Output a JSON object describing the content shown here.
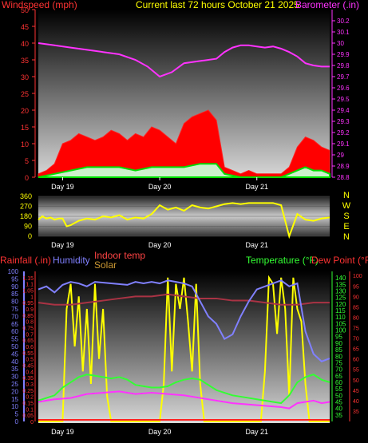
{
  "page": {
    "title": "Current last 72 hours October 21 2025",
    "title_color": "#ffff00"
  },
  "chart_data": [
    {
      "id": "wind_baro",
      "type": "line",
      "title": "Current last 72 hours October 21 2025",
      "ylabel_left": "Windspeed (mph)",
      "ylabel_right": "Barometer (.in)",
      "colors": {
        "left_label": "#ff3333",
        "right_label": "#ff33ff",
        "wind": "#ff0000",
        "gust": "#ff0000",
        "avg": "#00cc00",
        "low": "#d8f0d8",
        "baro": "#ff33ff"
      },
      "x_ticks": [
        "Day 19",
        "Day 20",
        "Day 21"
      ],
      "x_tick_hours": [
        6,
        30,
        54
      ],
      "x_range_hours": [
        0,
        72
      ],
      "ylim_left": [
        0,
        50
      ],
      "yticks_left": [
        0,
        5,
        10,
        15,
        20,
        25,
        30,
        35,
        40,
        45,
        50
      ],
      "ylim_right": [
        28.8,
        30.3
      ],
      "yticks_right": [
        "28.8",
        "28.9",
        "29",
        "29.1",
        "29.2",
        "29.3",
        "29.4",
        "29.5",
        "29.6",
        "29.7",
        "29.8",
        "29.9",
        "30",
        "30.1",
        "30.2"
      ],
      "series": [
        {
          "key": "wind_gust",
          "x": [
            0,
            2,
            4,
            6,
            8,
            10,
            12,
            14,
            16,
            18,
            20,
            22,
            24,
            26,
            28,
            30,
            32,
            34,
            36,
            38,
            40,
            42,
            44,
            46,
            48,
            50,
            52,
            54,
            56,
            58,
            60,
            62,
            64,
            66,
            68,
            70,
            72
          ],
          "y": [
            1,
            2,
            4,
            10,
            11,
            13,
            12,
            11,
            12,
            14,
            13,
            11,
            13,
            12,
            15,
            14,
            12,
            10,
            16,
            18,
            19,
            20,
            17,
            3,
            2,
            1,
            2,
            1,
            1,
            1,
            1,
            3,
            9,
            12,
            11,
            9,
            8
          ]
        },
        {
          "key": "wind_avg",
          "x": [
            0,
            4,
            8,
            12,
            16,
            20,
            24,
            28,
            32,
            36,
            40,
            44,
            46,
            50,
            56,
            60,
            62,
            64,
            66,
            68,
            70,
            72
          ],
          "y": [
            0,
            1,
            2,
            3,
            3,
            3,
            2,
            3,
            3,
            3,
            4,
            4,
            1,
            0,
            0,
            0,
            1,
            2,
            3,
            2,
            2,
            1
          ]
        },
        {
          "key": "barometer",
          "x": [
            0,
            4,
            8,
            12,
            16,
            20,
            24,
            27,
            30,
            33,
            36,
            40,
            44,
            46,
            48,
            50,
            52,
            54,
            56,
            58,
            60,
            62,
            64,
            66,
            68,
            70,
            72
          ],
          "y": [
            30.0,
            29.98,
            29.96,
            29.94,
            29.92,
            29.9,
            29.85,
            29.79,
            29.7,
            29.74,
            29.82,
            29.84,
            29.86,
            29.92,
            29.96,
            29.98,
            29.98,
            29.97,
            29.96,
            29.97,
            29.95,
            29.92,
            29.88,
            29.82,
            29.8,
            29.79,
            29.79
          ]
        }
      ]
    },
    {
      "id": "wind_dir",
      "type": "line",
      "ylim": [
        0,
        360
      ],
      "yticks": [
        0,
        90,
        180,
        270,
        360
      ],
      "right_labels": [
        "N",
        "W",
        "S",
        "E",
        "N"
      ],
      "x_ticks": [
        "Day 19",
        "Day 20",
        "Day 21"
      ],
      "x_tick_hours": [
        6,
        30,
        54
      ],
      "x_range_hours": [
        0,
        72
      ],
      "color": "#ffff00",
      "series": [
        {
          "key": "direction",
          "x": [
            0,
            1,
            2,
            3,
            4,
            5,
            6,
            7,
            8,
            10,
            12,
            14,
            16,
            18,
            20,
            22,
            24,
            26,
            28,
            30,
            32,
            34,
            36,
            38,
            40,
            42,
            44,
            46,
            48,
            50,
            52,
            54,
            56,
            58,
            60,
            62,
            64,
            66,
            68,
            70,
            72
          ],
          "y": [
            150,
            180,
            160,
            170,
            150,
            160,
            160,
            90,
            100,
            140,
            160,
            150,
            180,
            170,
            190,
            150,
            170,
            160,
            200,
            280,
            240,
            260,
            230,
            280,
            260,
            250,
            270,
            290,
            300,
            290,
            300,
            300,
            300,
            300,
            280,
            0,
            200,
            150,
            140,
            160,
            170
          ]
        }
      ]
    },
    {
      "id": "temp_panel",
      "type": "line",
      "legend": {
        "rainfall": "Rainfall (.in)",
        "humidity": "Humidity",
        "indoor": "Indoor temp",
        "solar": "Solar",
        "temperature": "Temperature (°F)",
        "dewpoint": "Dew Point (°F)"
      },
      "colors": {
        "rainfall": "#ff3333",
        "humidity": "#8080ff",
        "indoor": "#ff4444",
        "solar": "#cc9933",
        "temperature": "#33ff33",
        "dewpoint": "#ff3333",
        "solar_line": "#ffff00",
        "dew_line": "#ff33ff",
        "inside_line": "#aa3344"
      },
      "x_ticks": [
        "Day 19",
        "Day 20",
        "Day 21"
      ],
      "x_tick_hours": [
        6,
        30,
        54
      ],
      "x_range_hours": [
        0,
        72
      ],
      "ylim_rain": [
        0,
        1.2
      ],
      "yticks_rain": [
        "0",
        "0.05",
        "0.1",
        "0.15",
        "0.2",
        "0.25",
        "0.3",
        "0.35",
        "0.4",
        "0.45",
        "0.5",
        "0.55",
        "0.6",
        "0.65",
        "0.7",
        "0.75",
        "0.8",
        "0.85",
        "0.9",
        "0.95",
        "1",
        "1.05",
        "1.1",
        "1.15"
      ],
      "ylim_hum": [
        0,
        100
      ],
      "yticks_hum": [
        0,
        5,
        10,
        15,
        20,
        25,
        30,
        35,
        40,
        45,
        50,
        55,
        60,
        65,
        70,
        75,
        80,
        85,
        90,
        95,
        100
      ],
      "ylim_temp": [
        30,
        145
      ],
      "yticks_temp": [
        35,
        40,
        45,
        50,
        55,
        60,
        65,
        70,
        75,
        80,
        85,
        90,
        95,
        100,
        105,
        110,
        115,
        120,
        125,
        130,
        135,
        140
      ],
      "ylim_dew": [
        30,
        102
      ],
      "yticks_dew": [
        35,
        40,
        45,
        50,
        55,
        60,
        65,
        70,
        75,
        80,
        85,
        90,
        95,
        100
      ],
      "series": [
        {
          "key": "humidity",
          "x": [
            0,
            2,
            4,
            6,
            8,
            10,
            12,
            14,
            18,
            22,
            24,
            26,
            28,
            30,
            32,
            34,
            36,
            38,
            40,
            42,
            44,
            46,
            48,
            50,
            52,
            54,
            56,
            58,
            60,
            62,
            64,
            66,
            68,
            70,
            72
          ],
          "y": [
            88,
            90,
            86,
            91,
            93,
            92,
            90,
            93,
            92,
            91,
            93,
            92,
            93,
            92,
            94,
            93,
            92,
            90,
            80,
            70,
            65,
            55,
            58,
            70,
            80,
            88,
            90,
            92,
            94,
            90,
            92,
            60,
            45,
            40,
            42
          ]
        },
        {
          "key": "temperature",
          "x": [
            0,
            2,
            4,
            6,
            8,
            10,
            12,
            14,
            16,
            18,
            20,
            22,
            24,
            26,
            28,
            30,
            32,
            34,
            36,
            38,
            40,
            42,
            44,
            46,
            48,
            50,
            52,
            54,
            56,
            58,
            60,
            62,
            64,
            66,
            68,
            70,
            72
          ],
          "y": [
            46,
            48,
            50,
            56,
            60,
            64,
            66,
            65,
            64,
            63,
            64,
            62,
            58,
            57,
            56,
            56,
            57,
            60,
            62,
            63,
            62,
            58,
            54,
            52,
            50,
            49,
            48,
            47,
            46,
            45,
            44,
            50,
            60,
            64,
            66,
            62,
            60
          ]
        },
        {
          "key": "dewpoint",
          "x": [
            0,
            4,
            8,
            12,
            16,
            20,
            24,
            28,
            32,
            36,
            40,
            44,
            48,
            52,
            56,
            60,
            62,
            64,
            66,
            68,
            70,
            72
          ],
          "y": [
            45,
            47,
            48,
            51,
            52,
            53,
            51,
            52,
            51,
            50,
            48,
            46,
            44,
            43,
            42,
            41,
            40,
            44,
            45,
            46,
            44,
            45
          ]
        },
        {
          "key": "indoor_temp",
          "x": [
            0,
            4,
            8,
            12,
            16,
            20,
            24,
            28,
            32,
            36,
            40,
            44,
            48,
            52,
            56,
            60,
            64,
            68,
            72
          ],
          "y": [
            87,
            86,
            86,
            87,
            88,
            89,
            90,
            90,
            91,
            90,
            89,
            89,
            88,
            88,
            87,
            86,
            86,
            87,
            87
          ]
        },
        {
          "key": "solar",
          "x": [
            0,
            6,
            7,
            8,
            9,
            10,
            11,
            12,
            13,
            14,
            15,
            16,
            17,
            18,
            19,
            30,
            31,
            32,
            33,
            34,
            35,
            36,
            37,
            38,
            39,
            40,
            41,
            42,
            43,
            54,
            55,
            56,
            57,
            58,
            59,
            60,
            61,
            62,
            63,
            64,
            65,
            66,
            67,
            72
          ],
          "y": [
            0,
            0,
            0.9,
            1.1,
            0.6,
            1.0,
            0.4,
            0.9,
            0.3,
            1.1,
            0.5,
            0.9,
            0.2,
            0,
            0,
            0,
            0.3,
            1.15,
            0.4,
            1.1,
            0.9,
            1.15,
            0.8,
            0.4,
            1.1,
            0.3,
            0,
            0,
            0,
            0,
            0,
            0.4,
            1.15,
            1.1,
            0.7,
            1.15,
            0.9,
            0.2,
            1.15,
            0.9,
            0.8,
            0.3,
            0,
            0
          ]
        },
        {
          "key": "rainfall",
          "x": [
            0,
            72
          ],
          "y": [
            0,
            0
          ]
        }
      ]
    }
  ]
}
